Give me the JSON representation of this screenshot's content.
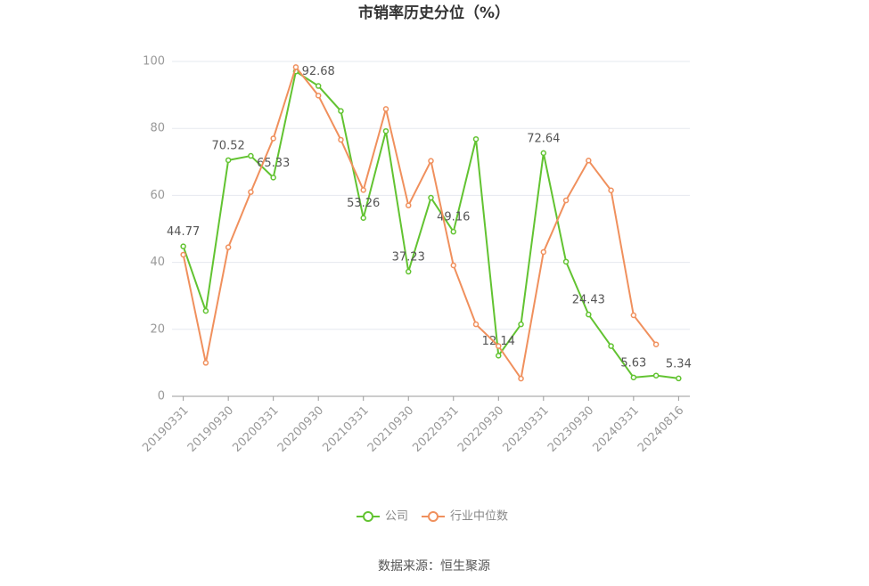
{
  "chart_data": {
    "type": "line",
    "title": "市销率历史分位（%）",
    "categories": [
      "20190331",
      null,
      "20190930",
      null,
      "20200331",
      null,
      "20200930",
      null,
      "20210331",
      null,
      "20210930",
      null,
      "20220331",
      null,
      "20220930",
      null,
      "20230331",
      null,
      "20230930",
      null,
      "20240331",
      null,
      "20240816"
    ],
    "series": [
      {
        "name": "公司",
        "color": "#62c331",
        "values": [
          44.77,
          25.5,
          70.52,
          71.8,
          65.33,
          97,
          92.68,
          85.2,
          53.26,
          79.2,
          37.23,
          59.3,
          49.16,
          76.8,
          12.14,
          21.5,
          72.64,
          40.2,
          24.43,
          15,
          5.63,
          6.2,
          5.34
        ],
        "value_labels": [
          "44.77",
          null,
          "70.52",
          null,
          "65.33",
          null,
          "92.68",
          null,
          "53.26",
          null,
          "37.23",
          null,
          "49.16",
          null,
          "12.14",
          null,
          "72.64",
          null,
          "24.43",
          null,
          "5.63",
          null,
          "5.34"
        ]
      },
      {
        "name": "行业中位数",
        "color": "#f0905d",
        "values": [
          42.3,
          10,
          44.5,
          61,
          77,
          98.3,
          89.8,
          76.6,
          61.6,
          85.8,
          57,
          70.3,
          39.1,
          21.5,
          15,
          5.3,
          43.1,
          58.5,
          70.4,
          61.5,
          24.2,
          15.5,
          null
        ]
      }
    ],
    "ylim": [
      0,
      100
    ],
    "yticks": [
      0,
      20,
      40,
      60,
      80,
      100
    ],
    "grid": true,
    "source": "数据来源：恒生聚源"
  }
}
